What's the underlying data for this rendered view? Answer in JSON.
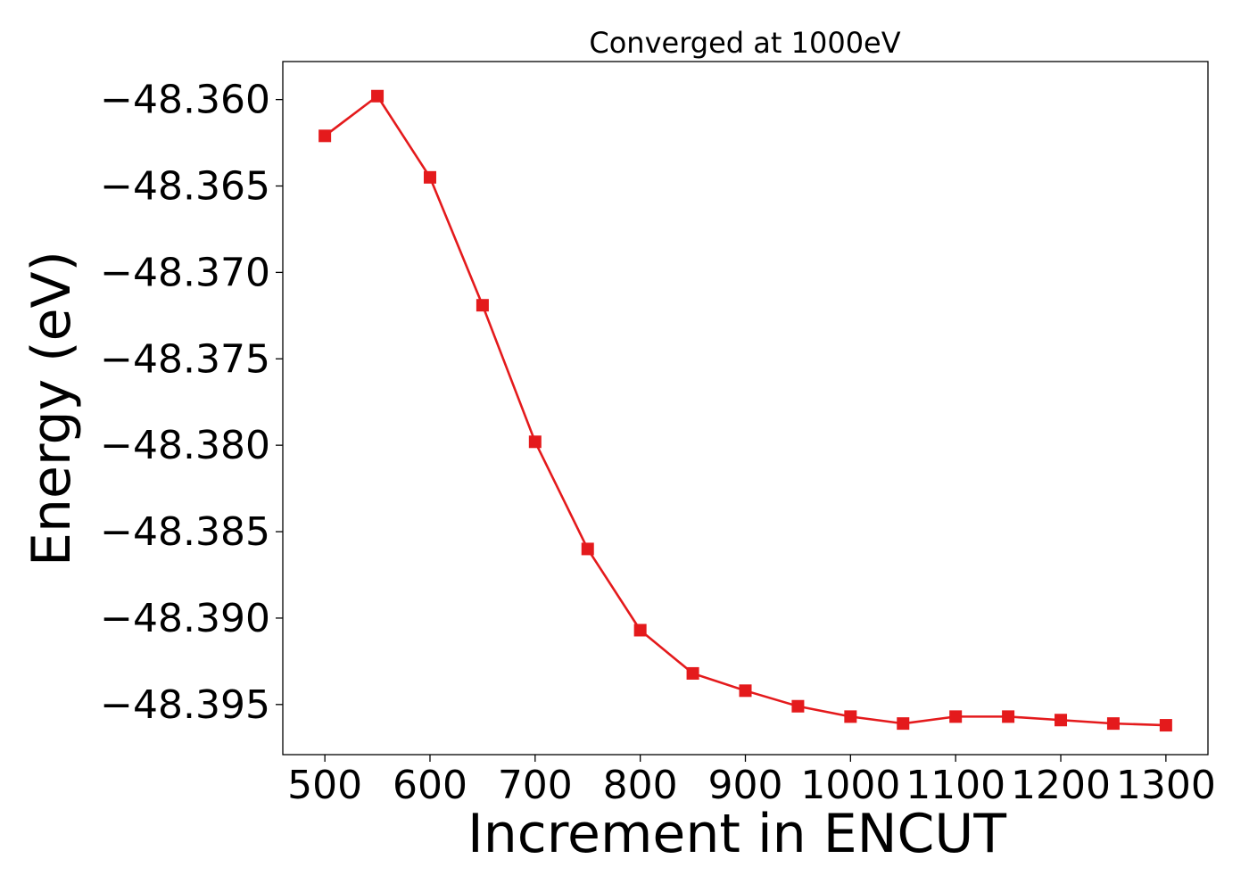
{
  "chart_data": {
    "type": "line",
    "title": "Converged at 1000eV",
    "xlabel": "Increment in ENCUT",
    "ylabel": "Energy (eV)",
    "xlim": [
      460,
      1340
    ],
    "ylim": [
      -48.3979,
      -48.3578
    ],
    "xticks": [
      500,
      600,
      700,
      800,
      900,
      1000,
      1100,
      1200,
      1300
    ],
    "yticks": [
      -48.36,
      -48.365,
      -48.37,
      -48.375,
      -48.38,
      -48.385,
      -48.39,
      -48.395
    ],
    "ytick_labels": [
      "−48.360",
      "−48.365",
      "−48.370",
      "−48.375",
      "−48.380",
      "−48.385",
      "−48.390",
      "−48.395"
    ],
    "grid": false,
    "series": [
      {
        "color": "#e41a1c",
        "marker": "square",
        "x": [
          500,
          550,
          600,
          650,
          700,
          750,
          800,
          850,
          900,
          950,
          1000,
          1050,
          1100,
          1150,
          1200,
          1250,
          1300
        ],
        "y": [
          -48.3621,
          -48.3598,
          -48.3645,
          -48.3719,
          -48.3798,
          -48.386,
          -48.3907,
          -48.3932,
          -48.3942,
          -48.3951,
          -48.3957,
          -48.3961,
          -48.3957,
          -48.3957,
          -48.3959,
          -48.3961,
          -48.3962
        ]
      }
    ]
  }
}
